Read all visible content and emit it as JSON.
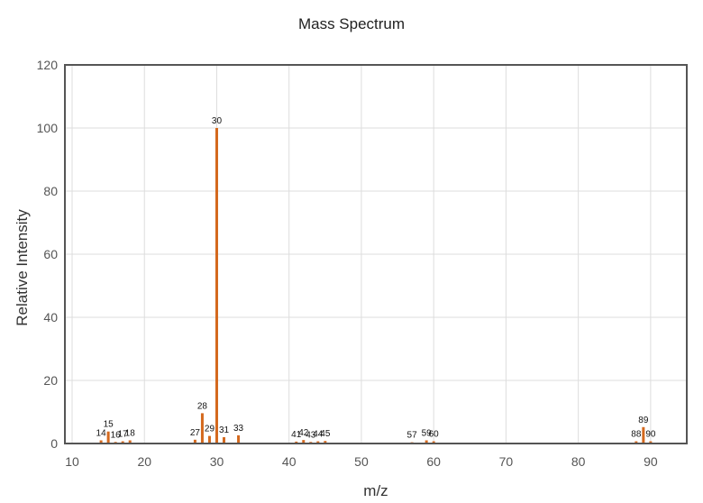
{
  "chart_data": {
    "type": "bar",
    "title": "Mass Spectrum",
    "xlabel": "m/z",
    "ylabel": "Relative Intensity",
    "xlim": [
      9,
      95
    ],
    "ylim": [
      0,
      120
    ],
    "xticks": [
      10,
      20,
      30,
      40,
      50,
      60,
      70,
      80,
      90
    ],
    "yticks": [
      0,
      20,
      40,
      60,
      80,
      100,
      120
    ],
    "grid": true,
    "bar_color": "#d4691e",
    "series": [
      {
        "x": [
          14,
          15,
          16,
          17,
          18,
          27,
          28,
          29,
          30,
          31,
          33,
          41,
          42,
          43,
          44,
          45,
          57,
          59,
          60,
          88,
          89,
          90
        ],
        "values": [
          1.0,
          3.8,
          0.5,
          0.7,
          1.0,
          1.2,
          9.6,
          2.4,
          100,
          2.0,
          2.6,
          0.6,
          1.1,
          0.5,
          0.7,
          0.8,
          0.4,
          1.0,
          0.7,
          0.7,
          5.2,
          0.7
        ]
      }
    ]
  }
}
